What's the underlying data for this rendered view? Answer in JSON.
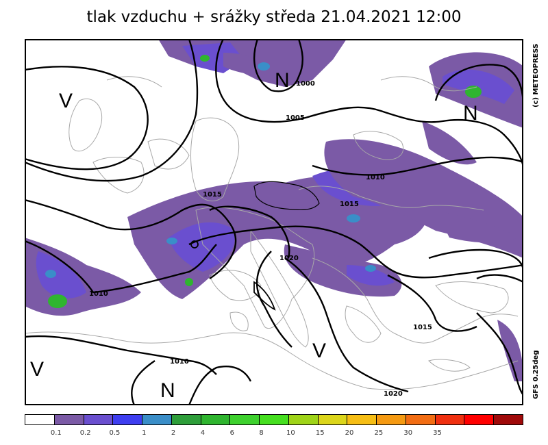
{
  "title": "tlak vzduchu + srážky  středa 21.04.2021 12:00",
  "credits": {
    "copyright": "(c) METEOPRESS",
    "model": "GFS 0.25deg"
  },
  "pressure_centers": [
    {
      "type": "V",
      "label": "V"
    },
    {
      "type": "N",
      "label": "N"
    },
    {
      "type": "N",
      "label": "N"
    },
    {
      "type": "V",
      "label": "V"
    },
    {
      "type": "V",
      "label": "V"
    },
    {
      "type": "N",
      "label": "N"
    }
  ],
  "isobar_labels": [
    "1000",
    "1005",
    "1010",
    "1015",
    "1015",
    "1010",
    "1020",
    "1015",
    "1010",
    "1020"
  ],
  "legend": {
    "colors": [
      "#ffffff",
      "#7b5aa6",
      "#6a4fcf",
      "#3e3ef0",
      "#3a8ec8",
      "#2e9e3a",
      "#2fb52f",
      "#3ed12e",
      "#46df20",
      "#9fd418",
      "#dcd61b",
      "#f6be15",
      "#f59a12",
      "#f26d13",
      "#f03010",
      "#ff0000",
      "#a00a0a"
    ],
    "labels": [
      "0.1",
      "0.2",
      "0.5",
      "1",
      "2",
      "4",
      "6",
      "8",
      "10",
      "15",
      "20",
      "25",
      "30",
      "35"
    ]
  }
}
